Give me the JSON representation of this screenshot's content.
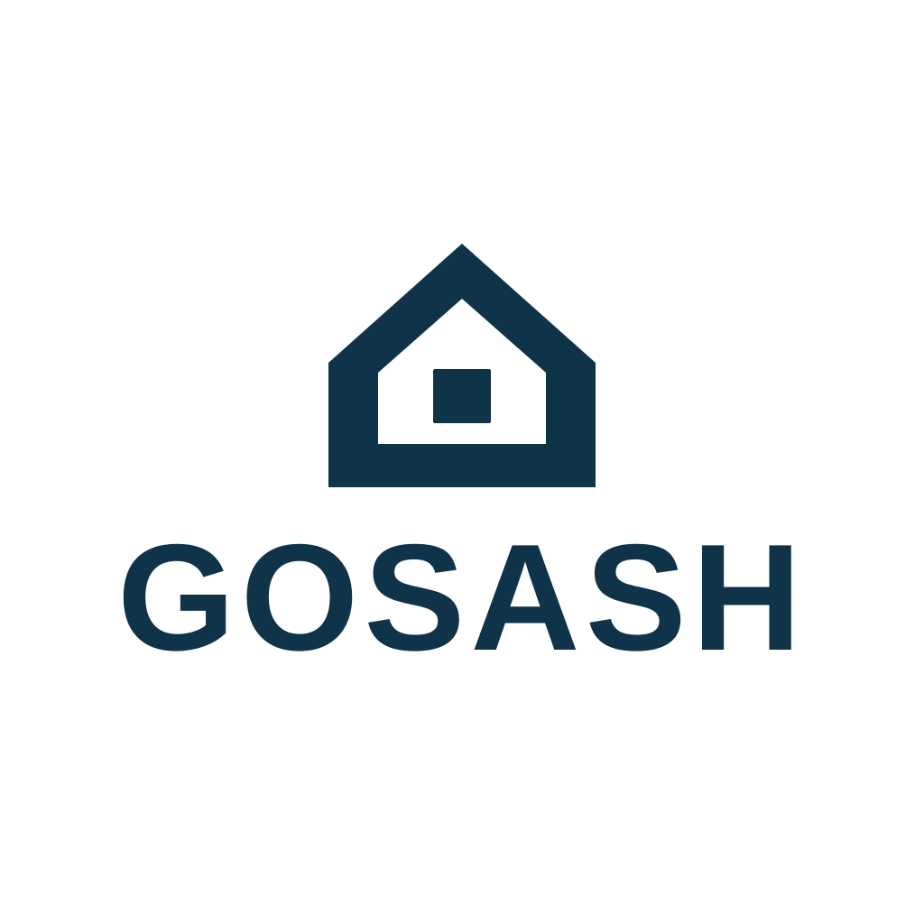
{
  "brand": {
    "name": "GOSASH",
    "color": "#0f3349",
    "background": "#ffffff",
    "logo_icon": "house-icon"
  }
}
